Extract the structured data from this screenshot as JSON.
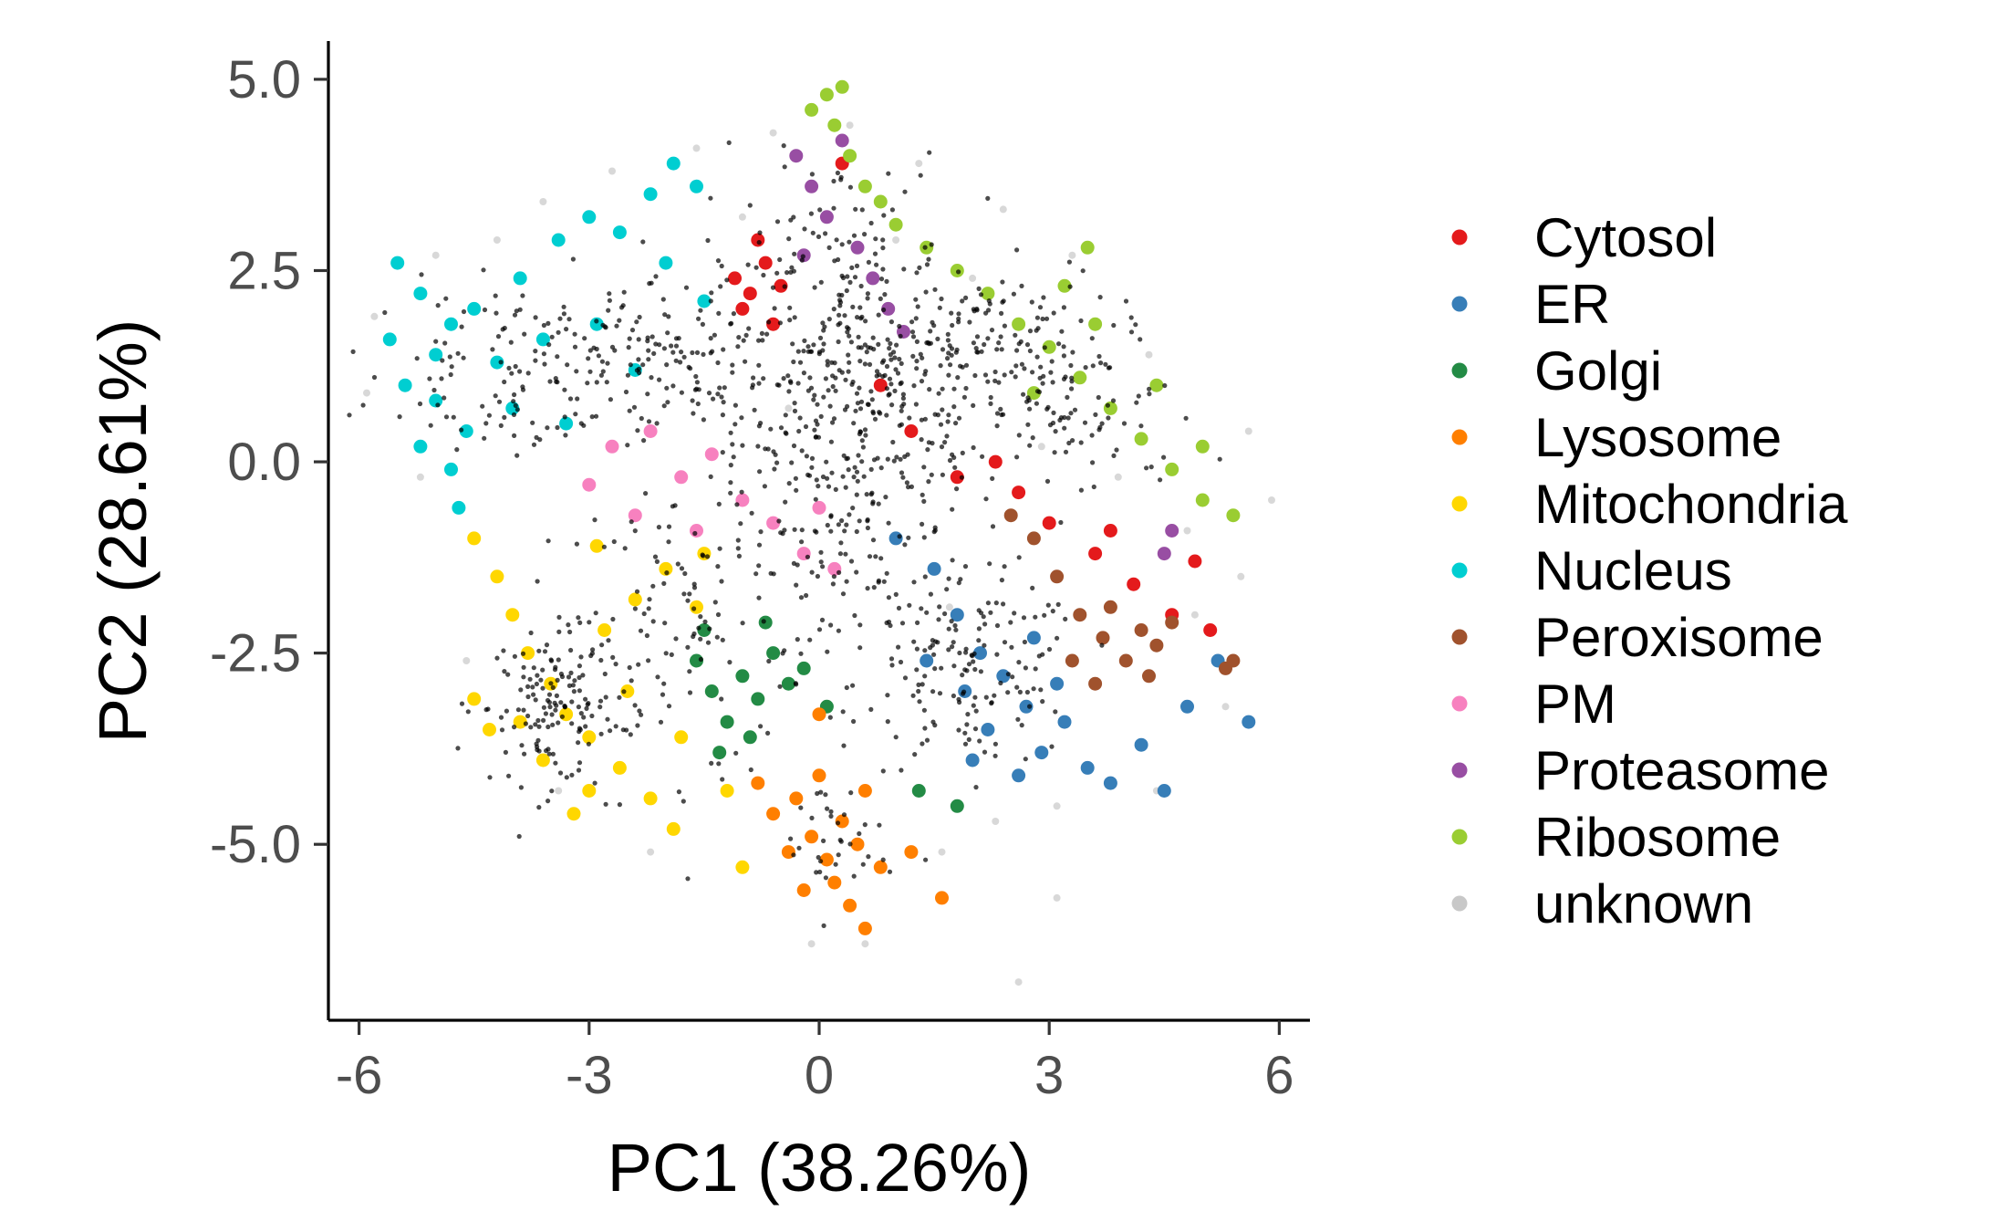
{
  "chart_data": {
    "type": "scatter",
    "title": "",
    "xlabel": "PC1 (38.26%)",
    "ylabel": "PC2 (28.61%)",
    "xlim": [
      -6.4,
      6.4
    ],
    "ylim": [
      -7.3,
      5.5
    ],
    "x_ticks": [
      -6,
      -3,
      0,
      3,
      6
    ],
    "x_tick_labels": [
      "-6",
      "-3",
      "0",
      "3",
      "6"
    ],
    "y_ticks": [
      5.0,
      2.5,
      0.0,
      -2.5,
      -5.0
    ],
    "y_tick_labels": [
      "5.0",
      "2.5",
      "0.0",
      "-2.5",
      "-5.0"
    ],
    "grid": false,
    "legend_position": "right",
    "series": [
      {
        "name": "Cytosol",
        "color": "#e41a1c",
        "points": [
          [
            -1.1,
            2.4
          ],
          [
            -0.9,
            2.2
          ],
          [
            -0.7,
            2.6
          ],
          [
            -1.0,
            2.0
          ],
          [
            -0.6,
            1.8
          ],
          [
            -0.8,
            2.9
          ],
          [
            -0.5,
            2.3
          ],
          [
            0.3,
            3.9
          ],
          [
            0.8,
            1.0
          ],
          [
            1.2,
            0.4
          ],
          [
            1.8,
            -0.2
          ],
          [
            2.3,
            0.0
          ],
          [
            2.6,
            -0.4
          ],
          [
            3.0,
            -0.8
          ],
          [
            3.6,
            -1.2
          ],
          [
            4.1,
            -1.6
          ],
          [
            4.6,
            -2.0
          ],
          [
            5.1,
            -2.2
          ],
          [
            3.8,
            -0.9
          ],
          [
            4.9,
            -1.3
          ]
        ]
      },
      {
        "name": "ER",
        "color": "#377eb8",
        "points": [
          [
            1.0,
            -1.0
          ],
          [
            1.5,
            -1.4
          ],
          [
            1.8,
            -2.0
          ],
          [
            2.1,
            -2.5
          ],
          [
            2.4,
            -2.8
          ],
          [
            2.7,
            -3.2
          ],
          [
            2.2,
            -3.5
          ],
          [
            2.9,
            -3.8
          ],
          [
            3.2,
            -3.4
          ],
          [
            3.5,
            -4.0
          ],
          [
            3.8,
            -4.2
          ],
          [
            2.6,
            -4.1
          ],
          [
            1.9,
            -3.0
          ],
          [
            2.8,
            -2.3
          ],
          [
            3.1,
            -2.9
          ],
          [
            4.2,
            -3.7
          ],
          [
            4.8,
            -3.2
          ],
          [
            5.2,
            -2.6
          ],
          [
            5.6,
            -3.4
          ],
          [
            4.5,
            -4.3
          ],
          [
            2.0,
            -3.9
          ],
          [
            1.4,
            -2.6
          ]
        ]
      },
      {
        "name": "Golgi",
        "color": "#238b45",
        "points": [
          [
            -1.6,
            -2.6
          ],
          [
            -1.4,
            -3.0
          ],
          [
            -1.2,
            -3.4
          ],
          [
            -1.0,
            -2.8
          ],
          [
            -0.8,
            -3.1
          ],
          [
            -0.6,
            -2.5
          ],
          [
            -0.4,
            -2.9
          ],
          [
            -1.3,
            -3.8
          ],
          [
            -0.9,
            -3.6
          ],
          [
            -0.2,
            -2.7
          ],
          [
            0.1,
            -3.2
          ],
          [
            -1.5,
            -2.2
          ],
          [
            1.3,
            -4.3
          ],
          [
            1.8,
            -4.5
          ],
          [
            -0.7,
            -2.1
          ]
        ]
      },
      {
        "name": "Lysosome",
        "color": "#ff7f00",
        "points": [
          [
            -0.6,
            -4.6
          ],
          [
            -0.3,
            -4.4
          ],
          [
            -0.1,
            -4.9
          ],
          [
            0.1,
            -5.2
          ],
          [
            0.3,
            -4.7
          ],
          [
            0.5,
            -5.0
          ],
          [
            0.2,
            -5.5
          ],
          [
            -0.4,
            -5.1
          ],
          [
            0.6,
            -4.3
          ],
          [
            0.0,
            -4.1
          ],
          [
            -0.2,
            -5.6
          ],
          [
            0.4,
            -5.8
          ],
          [
            0.8,
            -5.3
          ],
          [
            1.2,
            -5.1
          ],
          [
            0.6,
            -6.1
          ],
          [
            1.6,
            -5.7
          ],
          [
            -0.8,
            -4.2
          ],
          [
            0.0,
            -3.3
          ]
        ]
      },
      {
        "name": "Mitochondria",
        "color": "#ffd700",
        "points": [
          [
            -4.5,
            -1.0
          ],
          [
            -4.2,
            -1.5
          ],
          [
            -4.0,
            -2.0
          ],
          [
            -3.8,
            -2.5
          ],
          [
            -3.5,
            -2.9
          ],
          [
            -3.3,
            -3.3
          ],
          [
            -3.0,
            -3.6
          ],
          [
            -2.6,
            -4.0
          ],
          [
            -2.2,
            -4.4
          ],
          [
            -1.9,
            -4.8
          ],
          [
            -2.8,
            -2.2
          ],
          [
            -2.4,
            -1.8
          ],
          [
            -2.0,
            -1.4
          ],
          [
            -1.6,
            -1.9
          ],
          [
            -2.5,
            -3.0
          ],
          [
            -1.8,
            -3.6
          ],
          [
            -3.6,
            -3.9
          ],
          [
            -3.9,
            -3.4
          ],
          [
            -4.5,
            -3.1
          ],
          [
            -4.3,
            -3.5
          ],
          [
            -1.2,
            -4.3
          ],
          [
            -1.0,
            -5.3
          ],
          [
            -3.0,
            -4.3
          ],
          [
            -1.5,
            -1.2
          ],
          [
            -2.9,
            -1.1
          ],
          [
            -3.2,
            -4.6
          ]
        ]
      },
      {
        "name": "Nucleus",
        "color": "#00ced1",
        "points": [
          [
            -5.6,
            1.6
          ],
          [
            -5.5,
            2.6
          ],
          [
            -5.2,
            2.2
          ],
          [
            -5.0,
            1.4
          ],
          [
            -4.8,
            1.8
          ],
          [
            -4.5,
            2.0
          ],
          [
            -4.2,
            1.3
          ],
          [
            -5.4,
            1.0
          ],
          [
            -5.0,
            0.8
          ],
          [
            -4.6,
            0.4
          ],
          [
            -5.2,
            0.2
          ],
          [
            -4.8,
            -0.1
          ],
          [
            -3.9,
            2.4
          ],
          [
            -3.4,
            2.9
          ],
          [
            -3.0,
            3.2
          ],
          [
            -2.6,
            3.0
          ],
          [
            -2.2,
            3.5
          ],
          [
            -1.9,
            3.9
          ],
          [
            -1.6,
            3.6
          ],
          [
            -3.6,
            1.6
          ],
          [
            -2.9,
            1.8
          ],
          [
            -2.4,
            1.2
          ],
          [
            -2.0,
            2.6
          ],
          [
            -1.5,
            2.1
          ],
          [
            -4.0,
            0.7
          ],
          [
            -3.3,
            0.5
          ],
          [
            -4.7,
            -0.6
          ]
        ]
      },
      {
        "name": "Peroxisome",
        "color": "#a0522d",
        "points": [
          [
            3.1,
            -1.5
          ],
          [
            3.4,
            -2.0
          ],
          [
            3.7,
            -2.3
          ],
          [
            4.0,
            -2.6
          ],
          [
            4.3,
            -2.8
          ],
          [
            3.8,
            -1.9
          ],
          [
            4.2,
            -2.2
          ],
          [
            3.6,
            -2.9
          ],
          [
            4.4,
            -2.4
          ],
          [
            3.3,
            -2.6
          ],
          [
            4.6,
            -2.1
          ],
          [
            5.3,
            -2.7
          ],
          [
            5.4,
            -2.6
          ],
          [
            2.5,
            -0.7
          ],
          [
            2.8,
            -1.0
          ]
        ]
      },
      {
        "name": "PM",
        "color": "#f781bf",
        "points": [
          [
            -2.7,
            0.2
          ],
          [
            -2.2,
            0.4
          ],
          [
            -1.8,
            -0.2
          ],
          [
            -1.4,
            0.1
          ],
          [
            -1.0,
            -0.5
          ],
          [
            -0.6,
            -0.8
          ],
          [
            -0.2,
            -1.2
          ],
          [
            0.2,
            -1.4
          ],
          [
            -2.4,
            -0.7
          ],
          [
            -1.6,
            -0.9
          ],
          [
            -3.0,
            -0.3
          ],
          [
            0.0,
            -0.6
          ]
        ]
      },
      {
        "name": "Proteasome",
        "color": "#984ea3",
        "points": [
          [
            -0.3,
            4.0
          ],
          [
            -0.1,
            3.6
          ],
          [
            0.1,
            3.2
          ],
          [
            0.3,
            4.2
          ],
          [
            0.5,
            2.8
          ],
          [
            0.7,
            2.4
          ],
          [
            0.9,
            2.0
          ],
          [
            1.1,
            1.7
          ],
          [
            -0.2,
            2.7
          ],
          [
            4.6,
            -0.9
          ],
          [
            4.5,
            -1.2
          ]
        ]
      },
      {
        "name": "Ribosome",
        "color": "#9acd32",
        "points": [
          [
            -0.1,
            4.6
          ],
          [
            0.1,
            4.8
          ],
          [
            0.3,
            4.9
          ],
          [
            0.2,
            4.4
          ],
          [
            0.4,
            4.0
          ],
          [
            0.6,
            3.6
          ],
          [
            0.8,
            3.4
          ],
          [
            1.0,
            3.1
          ],
          [
            1.4,
            2.8
          ],
          [
            1.8,
            2.5
          ],
          [
            2.2,
            2.2
          ],
          [
            2.6,
            1.8
          ],
          [
            3.0,
            1.5
          ],
          [
            3.4,
            1.1
          ],
          [
            3.8,
            0.7
          ],
          [
            4.2,
            0.3
          ],
          [
            4.6,
            -0.1
          ],
          [
            5.0,
            -0.5
          ],
          [
            5.4,
            -0.7
          ],
          [
            3.5,
            2.8
          ],
          [
            3.6,
            1.8
          ],
          [
            3.2,
            2.3
          ],
          [
            4.4,
            1.0
          ],
          [
            2.8,
            0.9
          ],
          [
            5.0,
            0.2
          ]
        ]
      },
      {
        "name": "unknown",
        "color": "#c8c8c8",
        "points": [
          [
            -5.8,
            1.9
          ],
          [
            -5.0,
            2.7
          ],
          [
            -4.2,
            2.9
          ],
          [
            -3.6,
            3.4
          ],
          [
            -2.7,
            3.8
          ],
          [
            -1.6,
            4.1
          ],
          [
            -0.6,
            4.3
          ],
          [
            0.4,
            4.4
          ],
          [
            1.3,
            3.9
          ],
          [
            2.4,
            3.3
          ],
          [
            3.3,
            2.7
          ],
          [
            4.3,
            1.4
          ],
          [
            5.6,
            0.4
          ],
          [
            5.9,
            -0.5
          ],
          [
            5.5,
            -1.5
          ],
          [
            5.3,
            -3.2
          ],
          [
            4.4,
            -4.3
          ],
          [
            3.1,
            -4.5
          ],
          [
            2.3,
            -4.7
          ],
          [
            1.6,
            -5.1
          ],
          [
            0.6,
            -6.3
          ],
          [
            -0.1,
            -6.3
          ],
          [
            3.1,
            -5.7
          ],
          [
            2.6,
            -6.8
          ],
          [
            -2.2,
            -5.1
          ],
          [
            -3.4,
            -4.3
          ],
          [
            -4.6,
            -2.6
          ],
          [
            -5.2,
            -0.2
          ],
          [
            -5.9,
            0.9
          ],
          [
            2.0,
            2.4
          ],
          [
            1.0,
            2.9
          ],
          [
            -1.0,
            3.2
          ],
          [
            4.8,
            -0.9
          ],
          [
            4.9,
            -2.0
          ],
          [
            1.7,
            -1.9
          ],
          [
            -0.4,
            0.7
          ],
          [
            2.9,
            0.2
          ],
          [
            3.9,
            -0.2
          ]
        ]
      }
    ],
    "black_overlay": {
      "name": "",
      "color": "#000000",
      "clusters": [
        {
          "center": [
            0.7,
            0.8
          ],
          "spread": [
            0.9,
            0.8
          ],
          "count": 260
        },
        {
          "center": [
            -3.5,
            -3.2
          ],
          "spread": [
            0.4,
            0.5
          ],
          "count": 120
        },
        {
          "center": [
            2.0,
            -2.8
          ],
          "spread": [
            0.7,
            0.6
          ],
          "count": 140
        },
        {
          "center": [
            -2.0,
            1.3
          ],
          "spread": [
            1.4,
            0.6
          ],
          "count": 200
        },
        {
          "center": [
            2.0,
            1.6
          ],
          "spread": [
            0.9,
            0.5
          ],
          "count": 120
        },
        {
          "center": [
            3.4,
            0.6
          ],
          "spread": [
            0.8,
            0.6
          ],
          "count": 80
        },
        {
          "center": [
            0.1,
            2.6
          ],
          "spread": [
            0.8,
            0.7
          ],
          "count": 110
        },
        {
          "center": [
            0.6,
            -1.2
          ],
          "spread": [
            1.0,
            0.8
          ],
          "count": 120
        },
        {
          "center": [
            -1.3,
            -1.8
          ],
          "spread": [
            1.1,
            0.9
          ],
          "count": 100
        },
        {
          "center": [
            -2.6,
            -3.2
          ],
          "spread": [
            0.8,
            0.9
          ],
          "count": 60
        },
        {
          "center": [
            0.2,
            -5.0
          ],
          "spread": [
            0.4,
            0.5
          ],
          "count": 35
        },
        {
          "center": [
            -4.0,
            1.2
          ],
          "spread": [
            0.8,
            0.5
          ],
          "count": 80
        }
      ]
    },
    "legend_entries": [
      "Cytosol",
      "ER",
      "Golgi",
      "Lysosome",
      "Mitochondria",
      "Nucleus",
      "Peroxisome",
      "PM",
      "Proteasome",
      "Ribosome",
      "unknown"
    ]
  }
}
